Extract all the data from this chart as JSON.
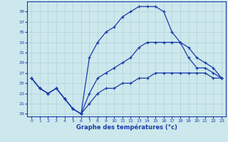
{
  "xlabel": "Graphe des températures (°c)",
  "bg_color": "#cce8ec",
  "line_color": "#1a3aaa",
  "grid_color": "#b0d0d8",
  "ylim": [
    18.5,
    41
  ],
  "xlim": [
    -0.5,
    23.5
  ],
  "yticks": [
    19,
    21,
    23,
    25,
    27,
    29,
    31,
    33,
    35,
    37,
    39
  ],
  "xticks": [
    0,
    1,
    2,
    3,
    4,
    5,
    6,
    7,
    8,
    9,
    10,
    11,
    12,
    13,
    14,
    15,
    16,
    17,
    18,
    19,
    20,
    21,
    22,
    23
  ],
  "line_top": [
    26,
    24,
    23,
    24,
    22,
    20,
    19,
    30,
    33,
    35,
    36,
    38,
    39,
    40,
    40,
    40,
    39,
    35,
    null,
    null,
    null,
    null,
    null,
    null
  ],
  "line_mid": [
    26,
    24,
    23,
    24,
    22,
    20,
    19,
    23,
    26,
    27,
    28,
    29,
    30,
    32,
    33,
    33,
    33,
    33,
    null,
    null,
    null,
    null,
    null,
    null
  ],
  "line_bottom": [
    null,
    null,
    null,
    null,
    null,
    null,
    null,
    null,
    null,
    null,
    null,
    null,
    null,
    null,
    null,
    null,
    null,
    null,
    null,
    null,
    null,
    null,
    null,
    null
  ],
  "line1_x": [
    0,
    1,
    2,
    3,
    4,
    5,
    6,
    7,
    8,
    9,
    10,
    11,
    12,
    13,
    14,
    15,
    16,
    17,
    18,
    19,
    20,
    21,
    22,
    23
  ],
  "line1_y": [
    26,
    24,
    23,
    24,
    22,
    20,
    19,
    30,
    33,
    35,
    36,
    38,
    39,
    40,
    40,
    40,
    39,
    35,
    33,
    30,
    28,
    28,
    27,
    26
  ],
  "line2_x": [
    0,
    1,
    2,
    3,
    4,
    5,
    6,
    7,
    8,
    9,
    10,
    11,
    12,
    13,
    14,
    15,
    16,
    17,
    18,
    19,
    20,
    21,
    22,
    23
  ],
  "line2_y": [
    26,
    24,
    23,
    24,
    22,
    20,
    19,
    23,
    26,
    27,
    28,
    29,
    30,
    32,
    33,
    33,
    33,
    33,
    33,
    32,
    30,
    29,
    28,
    26
  ],
  "line3_x": [
    0,
    1,
    2,
    3,
    4,
    5,
    6,
    7,
    8,
    9,
    10,
    11,
    12,
    13,
    14,
    15,
    16,
    17,
    18,
    19,
    20,
    21,
    22,
    23
  ],
  "line3_y": [
    26,
    24,
    23,
    24,
    22,
    20,
    19,
    21,
    23,
    24,
    24,
    25,
    25,
    26,
    26,
    27,
    27,
    27,
    27,
    27,
    27,
    27,
    26,
    26
  ]
}
